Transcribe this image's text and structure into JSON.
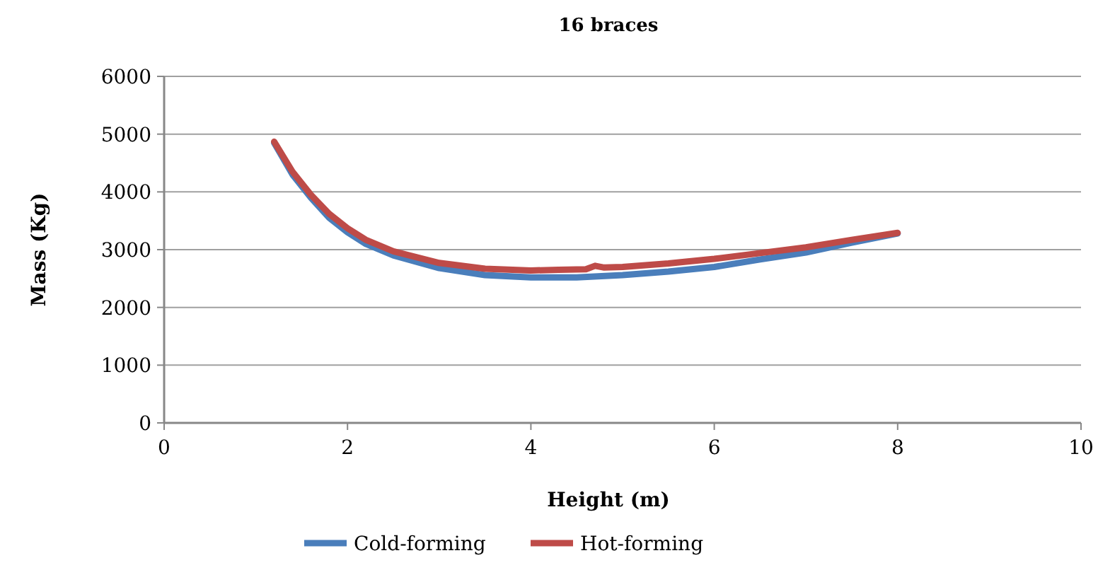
{
  "chart_data": {
    "type": "line",
    "title": "16 braces",
    "xlabel": "Height (m)",
    "ylabel": "Mass (Kg)",
    "xlim": [
      0,
      10
    ],
    "xticks": [
      0,
      2,
      4,
      6,
      8,
      10
    ],
    "ylim": [
      0,
      6000
    ],
    "yticks": [
      0,
      1000,
      2000,
      3000,
      4000,
      5000,
      6000
    ],
    "grid": "y",
    "legend": "bottom",
    "marker": "none",
    "line_style": "solid",
    "series": [
      {
        "name": "Cold-forming",
        "color": "#4a7ebb",
        "x": [
          1.2,
          1.4,
          1.6,
          1.8,
          2,
          2.2,
          2.5,
          3,
          3.5,
          4,
          4.5,
          5,
          5.5,
          6,
          6.5,
          7,
          7.5,
          8
        ],
        "values": [
          4850,
          4300,
          3900,
          3550,
          3300,
          3100,
          2900,
          2680,
          2560,
          2520,
          2520,
          2560,
          2620,
          2700,
          2830,
          2950,
          3120,
          3280
        ]
      },
      {
        "name": "Hot-forming",
        "color": "#be4b48",
        "x": [
          1.2,
          1.4,
          1.6,
          1.8,
          2,
          2.2,
          2.5,
          3,
          3.5,
          4,
          4.3,
          4.6,
          4.7,
          4.8,
          5,
          5.5,
          6,
          6.5,
          7,
          7.5,
          8
        ],
        "values": [
          4870,
          4350,
          3950,
          3620,
          3370,
          3170,
          2970,
          2770,
          2670,
          2640,
          2650,
          2660,
          2720,
          2690,
          2700,
          2760,
          2840,
          2940,
          3040,
          3170,
          3290
        ]
      }
    ]
  }
}
